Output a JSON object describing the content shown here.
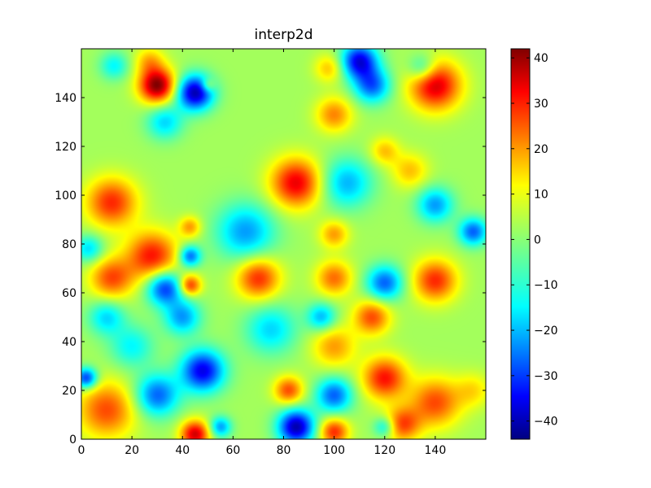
{
  "chart_data": {
    "type": "heatmap",
    "title": "interp2d",
    "xlabel": "",
    "ylabel": "",
    "xlim": [
      0,
      160
    ],
    "ylim": [
      0,
      160
    ],
    "x_ticks": [
      "0",
      "20",
      "40",
      "60",
      "80",
      "100",
      "120",
      "140"
    ],
    "y_ticks": [
      "0",
      "20",
      "40",
      "60",
      "80",
      "100",
      "120",
      "140"
    ],
    "colorbar": {
      "colormap": "jet",
      "range": [
        -44,
        42
      ],
      "ticks": [
        "40",
        "30",
        "20",
        "10",
        "0",
        "−10",
        "−20",
        "−30",
        "−40"
      ]
    },
    "background_value": 2,
    "blobs": [
      {
        "x": 30,
        "y": 145,
        "v": 42,
        "r": 5
      },
      {
        "x": 45,
        "y": 142,
        "v": -40,
        "r": 5
      },
      {
        "x": 50,
        "y": 145,
        "v": 15,
        "r": 2
      },
      {
        "x": 115,
        "y": 145,
        "v": -25,
        "r": 5
      },
      {
        "x": 140,
        "y": 145,
        "v": 35,
        "r": 7
      },
      {
        "x": 100,
        "y": 133,
        "v": 20,
        "r": 5
      },
      {
        "x": 33,
        "y": 130,
        "v": -15,
        "r": 5
      },
      {
        "x": 120,
        "y": 118,
        "v": 15,
        "r": 4
      },
      {
        "x": 85,
        "y": 105,
        "v": 33,
        "r": 7
      },
      {
        "x": 105,
        "y": 105,
        "v": -18,
        "r": 7
      },
      {
        "x": 130,
        "y": 110,
        "v": 15,
        "r": 5
      },
      {
        "x": 12,
        "y": 97,
        "v": 28,
        "r": 7
      },
      {
        "x": 140,
        "y": 96,
        "v": -20,
        "r": 5
      },
      {
        "x": 65,
        "y": 85,
        "v": -20,
        "r": 8
      },
      {
        "x": 43,
        "y": 87,
        "v": 18,
        "r": 3
      },
      {
        "x": 28,
        "y": 75,
        "v": 30,
        "r": 7
      },
      {
        "x": 12,
        "y": 66,
        "v": 25,
        "r": 6
      },
      {
        "x": 43,
        "y": 75,
        "v": -25,
        "r": 3
      },
      {
        "x": 43,
        "y": 63,
        "v": 28,
        "r": 3
      },
      {
        "x": 70,
        "y": 66,
        "v": 28,
        "r": 6
      },
      {
        "x": 100,
        "y": 66,
        "v": 22,
        "r": 5
      },
      {
        "x": 100,
        "y": 84,
        "v": 18,
        "r": 4
      },
      {
        "x": 33,
        "y": 62,
        "v": -30,
        "r": 5
      },
      {
        "x": 40,
        "y": 50,
        "v": -20,
        "r": 5
      },
      {
        "x": 120,
        "y": 64,
        "v": -25,
        "r": 5
      },
      {
        "x": 140,
        "y": 65,
        "v": 28,
        "r": 6
      },
      {
        "x": 115,
        "y": 50,
        "v": 25,
        "r": 5
      },
      {
        "x": 95,
        "y": 50,
        "v": -18,
        "r": 4
      },
      {
        "x": 10,
        "y": 50,
        "v": -15,
        "r": 5
      },
      {
        "x": 75,
        "y": 45,
        "v": -15,
        "r": 7
      },
      {
        "x": 20,
        "y": 38,
        "v": -12,
        "r": 6
      },
      {
        "x": 100,
        "y": 38,
        "v": 18,
        "r": 6
      },
      {
        "x": 48,
        "y": 28,
        "v": -35,
        "r": 6
      },
      {
        "x": 30,
        "y": 18,
        "v": -25,
        "r": 6
      },
      {
        "x": 120,
        "y": 25,
        "v": 30,
        "r": 6
      },
      {
        "x": 140,
        "y": 15,
        "v": 25,
        "r": 7
      },
      {
        "x": 10,
        "y": 12,
        "v": 25,
        "r": 8
      },
      {
        "x": 82,
        "y": 20,
        "v": 25,
        "r": 4
      },
      {
        "x": 100,
        "y": 18,
        "v": -25,
        "r": 5
      },
      {
        "x": 45,
        "y": 2,
        "v": 35,
        "r": 4
      },
      {
        "x": 55,
        "y": 5,
        "v": -20,
        "r": 3
      },
      {
        "x": 85,
        "y": 5,
        "v": -40,
        "r": 5
      },
      {
        "x": 100,
        "y": 3,
        "v": 28,
        "r": 4
      },
      {
        "x": 120,
        "y": 5,
        "v": -15,
        "r": 3
      },
      {
        "x": 127,
        "y": 6,
        "v": 25,
        "r": 5
      },
      {
        "x": 2,
        "y": 25,
        "v": -30,
        "r": 3
      },
      {
        "x": 3,
        "y": 78,
        "v": -15,
        "r": 4
      },
      {
        "x": 110,
        "y": 155,
        "v": -35,
        "r": 5
      },
      {
        "x": 135,
        "y": 152,
        "v": -15,
        "r": 4
      },
      {
        "x": 98,
        "y": 152,
        "v": 15,
        "r": 4
      },
      {
        "x": 27,
        "y": 155,
        "v": 15,
        "r": 4
      },
      {
        "x": 13,
        "y": 153,
        "v": -12,
        "r": 4
      },
      {
        "x": 155,
        "y": 85,
        "v": -25,
        "r": 4
      },
      {
        "x": 155,
        "y": 20,
        "v": 12,
        "r": 5
      }
    ]
  }
}
